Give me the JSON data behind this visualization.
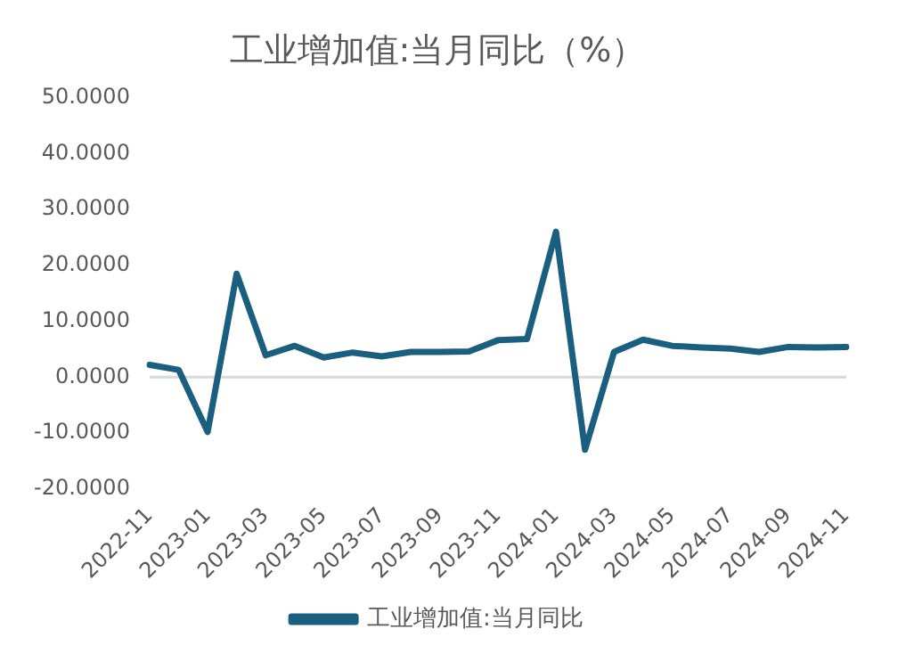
{
  "chart_data": {
    "type": "line",
    "title": "工业增加值:当月同比（%）",
    "categories": [
      "2022-11",
      null,
      "2023-01",
      null,
      "2023-03",
      null,
      "2023-05",
      null,
      "2023-07",
      null,
      "2023-09",
      null,
      "2023-11",
      null,
      "2024-01",
      null,
      "2024-03",
      null,
      "2024-05",
      null,
      "2024-07",
      null,
      "2024-09",
      null,
      "2024-11"
    ],
    "series": [
      {
        "name": "工业增加值:当月同比",
        "color": "#1b5f80",
        "values": [
          2.2,
          1.3,
          -9.8,
          18.5,
          3.9,
          5.6,
          3.5,
          4.4,
          3.7,
          4.5,
          4.5,
          4.6,
          6.6,
          6.8,
          26,
          -13,
          4.5,
          6.7,
          5.6,
          5.3,
          5.1,
          4.5,
          5.4,
          5.3,
          5.4
        ]
      }
    ],
    "ylim": [
      -20,
      50
    ],
    "yticks": [
      {
        "value": -20,
        "label": "-20.0000"
      },
      {
        "value": -10,
        "label": "-10.0000"
      },
      {
        "value": 0,
        "label": "0.0000"
      },
      {
        "value": 10,
        "label": "10.0000"
      },
      {
        "value": 20,
        "label": "20.0000"
      },
      {
        "value": 30,
        "label": "30.0000"
      },
      {
        "value": 40,
        "label": "40.0000"
      },
      {
        "value": 50,
        "label": "50.0000"
      }
    ],
    "ref_lines": [
      {
        "axis": "y",
        "value": 0,
        "color": "#d9d9d9"
      }
    ],
    "grid": false,
    "legend": "bottom",
    "marker": "none",
    "line_style": "solid"
  }
}
